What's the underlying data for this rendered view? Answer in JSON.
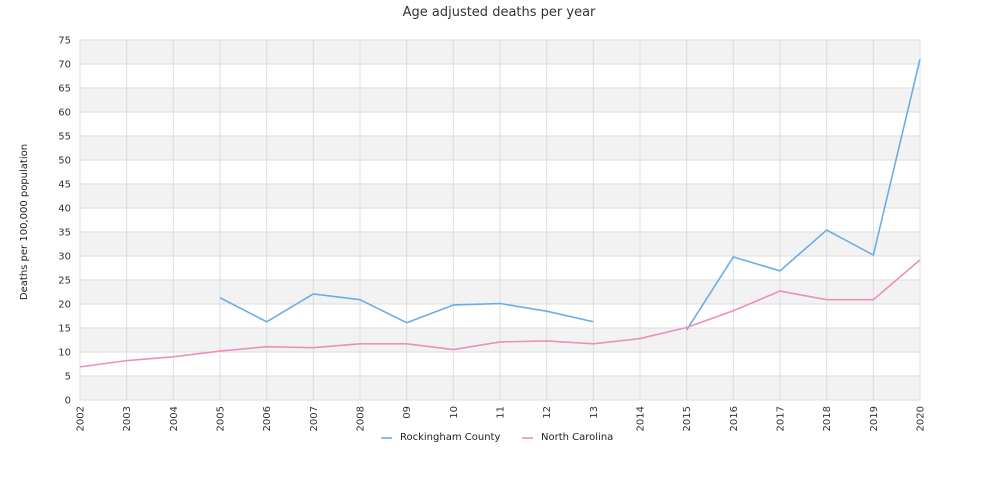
{
  "chart_data": {
    "type": "line",
    "title": "Age adjusted deaths per year",
    "ylabel": "Deaths per 100,000 population",
    "xlabel": "",
    "ylim": [
      0,
      75
    ],
    "y_ticks": [
      0,
      5,
      10,
      15,
      20,
      25,
      30,
      35,
      40,
      45,
      50,
      55,
      60,
      65,
      70,
      75
    ],
    "categories": [
      "2002",
      "2003",
      "2004",
      "2005",
      "2006",
      "2007",
      "2008",
      "09",
      "10",
      "11",
      "12",
      "13",
      "2014",
      "2015",
      "2016",
      "2017",
      "2018",
      "2019",
      "2020"
    ],
    "grid": true,
    "legend_position": "bottom",
    "series": [
      {
        "name": "Rockingham County",
        "color": "#6aaee8",
        "values": [
          null,
          null,
          null,
          21.3,
          16.3,
          22.1,
          20.9,
          16.1,
          19.8,
          20.1,
          18.5,
          16.3,
          null,
          14.6,
          29.8,
          26.9,
          35.4,
          30.2,
          71.0
        ]
      },
      {
        "name": "North Carolina",
        "color": "#ee8ec0",
        "values": [
          6.9,
          8.2,
          9.0,
          10.2,
          11.1,
          10.9,
          11.7,
          11.7,
          10.5,
          12.1,
          12.3,
          11.7,
          12.8,
          15.1,
          18.6,
          22.7,
          20.9,
          20.9,
          29.2
        ]
      }
    ]
  }
}
